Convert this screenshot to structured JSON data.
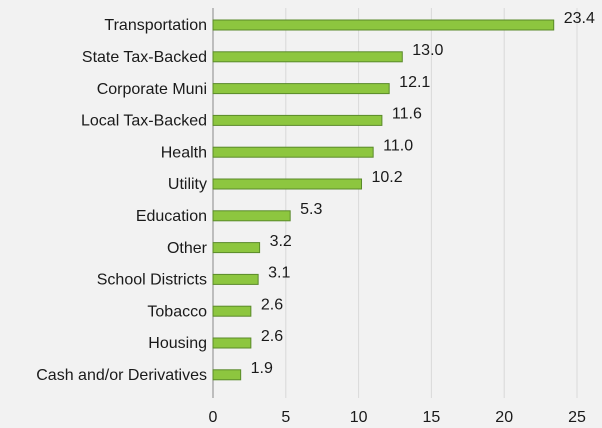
{
  "chart_data": {
    "type": "hbar",
    "categories": [
      "Transportation",
      "State Tax-Backed",
      "Corporate Muni",
      "Local Tax-Backed",
      "Health",
      "Utility",
      "Education",
      "Other",
      "School Districts",
      "Tobacco",
      "Housing",
      "Cash and/or Derivatives"
    ],
    "values": [
      23.4,
      13.0,
      12.1,
      11.6,
      11.0,
      10.2,
      5.3,
      3.2,
      3.1,
      2.6,
      2.6,
      1.9
    ],
    "value_labels": [
      "23.4",
      "13.0",
      "12.1",
      "11.6",
      "11.0",
      "10.2",
      "5.3",
      "3.2",
      "3.1",
      "2.6",
      "2.6",
      "1.9"
    ],
    "color": "#8dc63f",
    "xlim": [
      0,
      25
    ],
    "xticks": [
      0,
      5,
      10,
      15,
      20,
      25
    ],
    "grid": true
  }
}
